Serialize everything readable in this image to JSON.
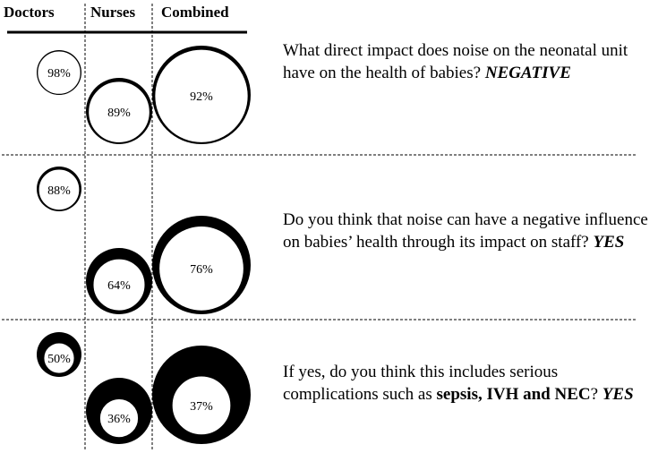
{
  "chart_data": {
    "type": "bubble",
    "columns": [
      "Doctors",
      "Nurses",
      "Combined"
    ],
    "rows": [
      {
        "question": "What direct impact does noise on the neonatal unit have on the health of babies?",
        "answer": "NEGATIVE",
        "values": {
          "Doctors": 98,
          "Nurses": 89,
          "Combined": 92
        }
      },
      {
        "question": "Do you think that noise can have a negative influence on babies’ health through its impact on staff?",
        "answer": "YES",
        "values": {
          "Doctors": 88,
          "Nurses": 64,
          "Combined": 76
        }
      },
      {
        "question_parts": [
          "If yes, do you think this includes serious complications such as ",
          "sepsis, IVH and NEC",
          "?"
        ],
        "answer": "YES",
        "values": {
          "Doctors": 50,
          "Nurses": 36,
          "Combined": 37
        }
      }
    ],
    "value_labels": [
      [
        "98%",
        "89%",
        "92%"
      ],
      [
        "88%",
        "64%",
        "76%"
      ],
      [
        "50%",
        "36%",
        "37%"
      ]
    ],
    "colors": {
      "outer": "#000000",
      "inner": "#ffffff"
    }
  }
}
